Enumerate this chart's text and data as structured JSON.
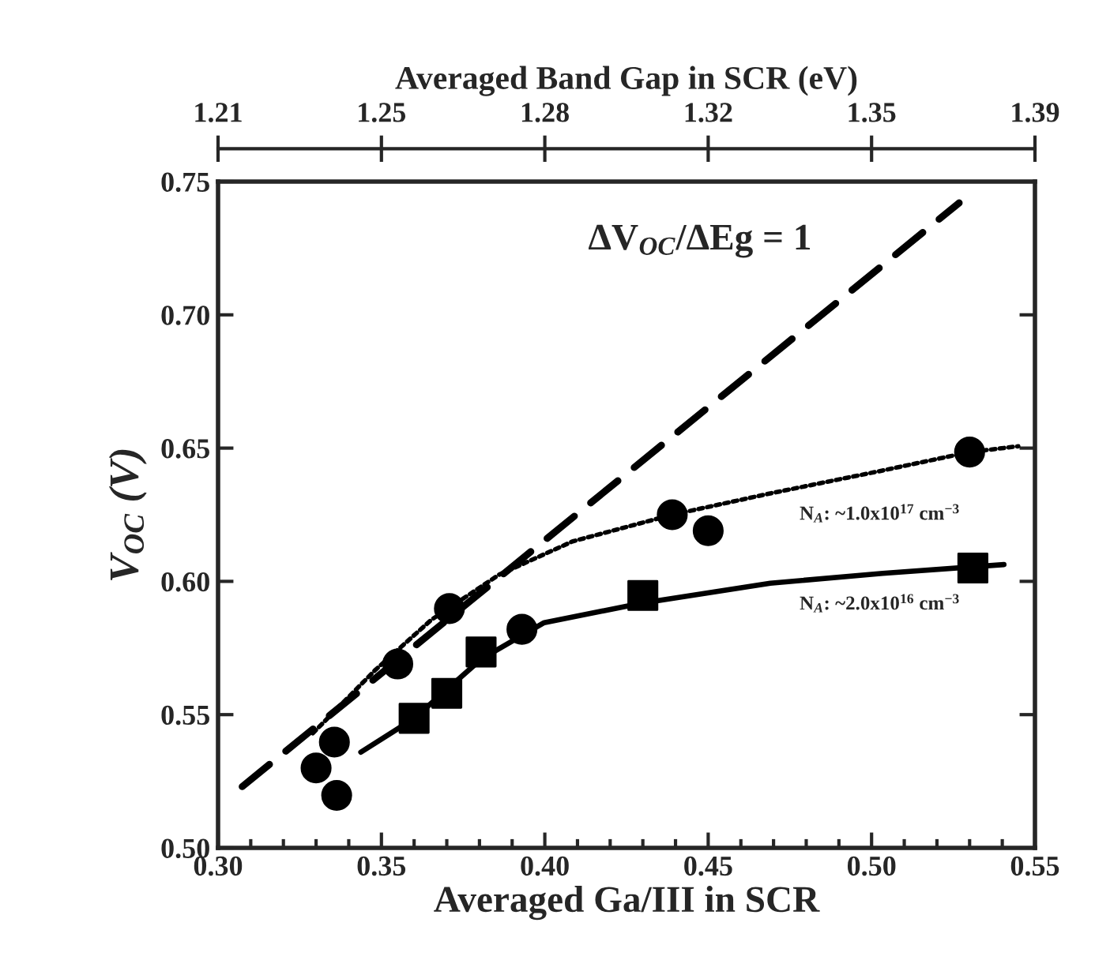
{
  "chart_data": {
    "type": "scatter",
    "xlabel": "Averaged Ga/III in SCR",
    "ylabel": "V$_{OC}$ (V)",
    "x2label": "Averaged Band Gap in SCR (eV)",
    "xlim": [
      0.3,
      0.55
    ],
    "xticks": [
      {
        "value": 0.3,
        "label": "0.30"
      },
      0.35,
      {
        "value": 0.4,
        "label": "0.40"
      },
      0.45,
      {
        "value": 0.5,
        "label": "0.50"
      },
      0.55
    ],
    "ylim": [
      0.5,
      0.75
    ],
    "yticks": [
      {
        "value": 0.5,
        "label": "0.50"
      },
      0.55,
      {
        "value": 0.6,
        "label": "0.60"
      },
      0.65,
      {
        "value": 0.7,
        "label": "0.70"
      },
      0.75
    ],
    "x2lim": [
      1.21,
      1.39
    ],
    "x2ticks": [
      1.21,
      {
        "value": 1.246,
        "label": "1.25"
      },
      {
        "value": 1.282,
        "label": "1.28"
      },
      {
        "value": 1.318,
        "label": "1.32"
      },
      {
        "value": 1.354,
        "label": "1.35"
      },
      1.39
    ],
    "grid": false,
    "legend": false,
    "series": [
      {
        "type": "line",
        "color": "#000000",
        "line_style": "dashed",
        "marker": "none",
        "x": [
          0.3074,
          0.5268
        ],
        "values": [
          0.523,
          0.742
        ]
      },
      {
        "type": "line",
        "color": "#000000",
        "line_style": "dotted",
        "marker": "none",
        "x": [
          0.329,
          0.348,
          0.3653,
          0.386,
          0.4085,
          0.439,
          0.469,
          0.5034,
          0.53,
          0.5449
        ],
        "values": [
          0.543,
          0.5666,
          0.5856,
          0.6025,
          0.615,
          0.625,
          0.633,
          0.6416,
          0.6485,
          0.6507
        ]
      },
      {
        "type": "line",
        "color": "#000000",
        "line_style": "solid",
        "marker": "none",
        "x": [
          0.3437,
          0.36,
          0.3805,
          0.3998,
          0.43,
          0.469,
          0.5034,
          0.5405
        ],
        "values": [
          0.5359,
          0.5486,
          0.5708,
          0.5845,
          0.5919,
          0.5993,
          0.603,
          0.6063
        ]
      },
      {
        "color": "#000000",
        "marker": "circle",
        "x": [
          0.33,
          0.3356,
          0.3363,
          0.355,
          0.3708,
          0.393,
          0.439,
          0.45,
          0.53
        ],
        "values": [
          0.53,
          0.5397,
          0.5197,
          0.569,
          0.5898,
          0.582,
          0.625,
          0.619,
          0.6485
        ]
      },
      {
        "color": "#000000",
        "marker": "square",
        "x": [
          0.36,
          0.37,
          0.3805,
          0.43,
          0.531
        ],
        "values": [
          0.5486,
          0.558,
          0.5735,
          0.5947,
          0.605
        ]
      }
    ],
    "annotations": [
      "ΔV$_{OC}$/ΔEg = 1",
      "N$_{A}$: ~1.0x10$^{17}$ cm$^{−3}$",
      "N$_{A}$: ~2.0x10$^{16}$ cm$^{−3}$"
    ]
  }
}
